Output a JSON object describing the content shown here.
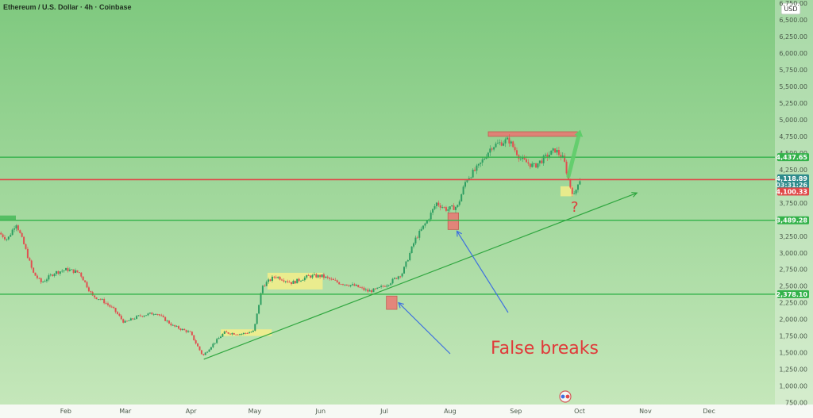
{
  "header": {
    "title": "Ethereum / U.S. Dollar · 4h · Coinbase"
  },
  "currency_button": "USD",
  "colors": {
    "bg_top": "#7fc97f",
    "bg_bottom": "#c7e8bc",
    "support_line": "#33b24a",
    "resistance_line": "#e04848",
    "trend_line": "#2fa63f",
    "arrow_blue": "#3d6fe0",
    "candle_up": "#2e9e62",
    "candle_down": "#e05050",
    "zone_red": "#f07070",
    "zone_yellow": "#f5ef8a"
  },
  "price_tags": [
    {
      "value": 4437.65,
      "label": "4,437.65",
      "color": "#33b24a"
    },
    {
      "value": 4118.89,
      "label": "4,118.89",
      "sub": "03:31:26",
      "color": "#2e8b8b"
    },
    {
      "value": 4100.33,
      "label": "4,100.33",
      "color": "#e04848"
    },
    {
      "value": 3489.28,
      "label": "3,489.28",
      "color": "#33b24a"
    },
    {
      "value": 2378.1,
      "label": "2,378.10",
      "color": "#33b24a"
    }
  ],
  "annotations": {
    "false_breaks": "False breaks",
    "question": "?"
  },
  "chart_data": {
    "type": "line",
    "title": "Ethereum / U.S. Dollar · 4h · Coinbase",
    "xlabel": "",
    "ylabel": "",
    "ylim": [
      720,
      6800
    ],
    "y_ticks": [
      750,
      1000,
      1250,
      1500,
      1750,
      2000,
      2250,
      2500,
      2750,
      3000,
      3250,
      3500,
      3750,
      4000,
      4250,
      4500,
      4750,
      5000,
      5250,
      5500,
      5750,
      6000,
      6250,
      6500,
      6750
    ],
    "y_tick_labels": [
      "750.00",
      "1,000.00",
      "1,250.00",
      "1,500.00",
      "1,750.00",
      "2,000.00",
      "2,250.00",
      "2,500.00",
      "2,750.00",
      "3,000.00",
      "3,250.00",
      "3,500.00",
      "3,750.00",
      "4,000.00",
      "4,250.00",
      "4,500.00",
      "4,750.00",
      "5,000.00",
      "5,250.00",
      "5,500.00",
      "5,750.00",
      "6,000.00",
      "6,250.00",
      "6,500.00",
      "6,750.00"
    ],
    "x_ticks": [
      "Feb",
      "Mar",
      "Apr",
      "May",
      "Jun",
      "Jul",
      "Aug",
      "Sep",
      "Oct",
      "Nov",
      "Dec"
    ],
    "x_tick_days": [
      31,
      59,
      90,
      120,
      151,
      181,
      212,
      243,
      273,
      304,
      334
    ],
    "xlim_days": [
      0,
      365
    ],
    "grid": false,
    "series": [
      {
        "x": [
          0,
          4,
          8,
          12,
          16,
          20,
          26,
          32,
          38,
          44,
          48,
          54,
          59,
          66,
          74,
          82,
          90,
          96,
          100,
          106,
          114,
          120,
          124,
          130,
          138,
          146,
          152,
          160,
          168,
          174,
          178,
          184,
          190,
          196,
          202,
          206,
          211,
          216,
          220,
          226,
          232,
          236,
          240,
          246,
          252,
          258,
          262,
          266,
          269,
          271,
          273
        ],
        "y": [
          3300,
          3200,
          3450,
          3100,
          2700,
          2550,
          2700,
          2750,
          2700,
          2350,
          2300,
          2150,
          1950,
          2050,
          2100,
          1900,
          1800,
          1450,
          1600,
          1800,
          1780,
          1820,
          2500,
          2650,
          2550,
          2650,
          2650,
          2550,
          2500,
          2420,
          2450,
          2550,
          2700,
          3200,
          3500,
          3750,
          3650,
          3700,
          4100,
          4300,
          4600,
          4650,
          4700,
          4400,
          4300,
          4450,
          4550,
          4400,
          4000,
          3850,
          4100
        ]
      }
    ],
    "levels": [
      {
        "value": 4437.65,
        "type": "support-resistance"
      },
      {
        "value": 4100.33,
        "type": "resistance"
      },
      {
        "value": 3489.28,
        "type": "support"
      },
      {
        "value": 2378.1,
        "type": "support"
      }
    ],
    "trendline": {
      "x": [
        96,
        300
      ],
      "y": [
        1400,
        3900
      ]
    },
    "zones": [
      {
        "kind": "false-break",
        "x": [
          182,
          187
        ],
        "y": [
          2150,
          2350
        ]
      },
      {
        "kind": "false-break",
        "x": [
          211,
          216
        ],
        "y": [
          3350,
          3600
        ]
      },
      {
        "kind": "resistance-zone",
        "x": [
          230,
          272
        ],
        "y": [
          4750,
          4820
        ]
      },
      {
        "kind": "consolidation",
        "x": [
          104,
          128
        ],
        "y": [
          1750,
          1850
        ]
      },
      {
        "kind": "consolidation",
        "x": [
          126,
          152
        ],
        "y": [
          2450,
          2700
        ]
      },
      {
        "kind": "pullback",
        "x": [
          264,
          270
        ],
        "y": [
          3850,
          4000
        ]
      }
    ]
  }
}
